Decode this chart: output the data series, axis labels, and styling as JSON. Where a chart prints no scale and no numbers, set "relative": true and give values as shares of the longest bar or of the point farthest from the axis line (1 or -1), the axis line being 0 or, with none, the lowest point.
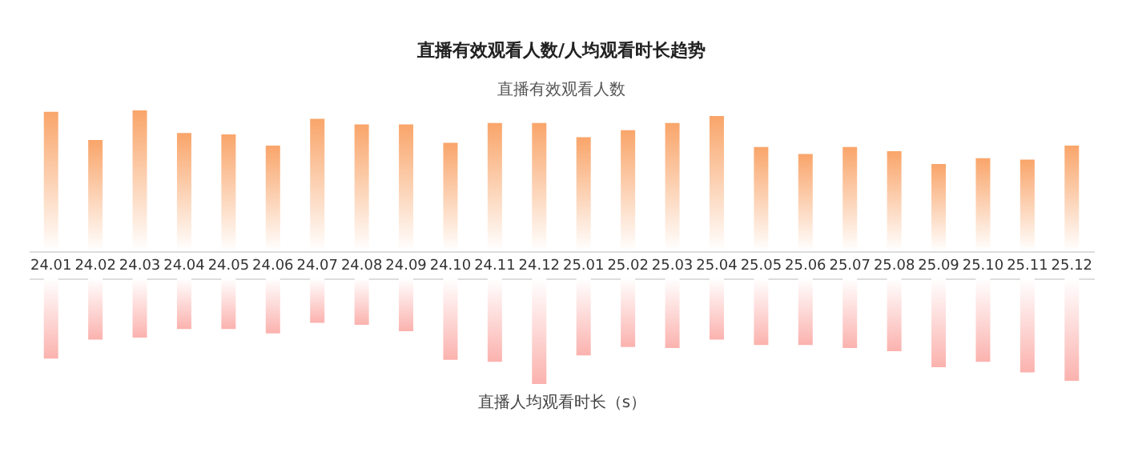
{
  "chart_data": [
    {
      "type": "bar",
      "title": "直播有效观看人数/人均观看时长趋势",
      "subtitle": "直播有效观看人数",
      "relative": true,
      "color": "#f9a56a",
      "categories": [
        "24.01",
        "24.02",
        "24.03",
        "24.04",
        "24.05",
        "24.06",
        "24.07",
        "24.08",
        "24.09",
        "24.10",
        "24.11",
        "24.12",
        "25.01",
        "25.02",
        "25.03",
        "25.04",
        "25.05",
        "25.06",
        "25.07",
        "25.08",
        "25.09",
        "25.10",
        "25.11",
        "25.12"
      ],
      "values": [
        0.99,
        0.79,
        1,
        0.84,
        0.83,
        0.75,
        0.94,
        0.9,
        0.9,
        0.77,
        0.91,
        0.91,
        0.81,
        0.86,
        0.91,
        0.96,
        0.74,
        0.69,
        0.74,
        0.71,
        0.62,
        0.66,
        0.65,
        0.75
      ]
    },
    {
      "type": "bar",
      "xlabel": "直播人均观看时长（s）",
      "relative": true,
      "color": "#fbb2ae",
      "tick_labels": false,
      "categories": [
        "24.01",
        "24.02",
        "24.03",
        "24.04",
        "24.05",
        "24.06",
        "24.07",
        "24.08",
        "24.09",
        "24.10",
        "24.11",
        "24.12",
        "25.01",
        "25.02",
        "25.03",
        "25.04",
        "25.05",
        "25.06",
        "25.07",
        "25.08",
        "25.09",
        "25.10",
        "25.11",
        "25.12"
      ],
      "values": [
        -0.76,
        -0.58,
        -0.56,
        -0.48,
        -0.48,
        -0.52,
        -0.42,
        -0.44,
        -0.5,
        -0.77,
        -0.79,
        -1,
        -0.73,
        -0.65,
        -0.66,
        -0.58,
        -0.63,
        -0.63,
        -0.66,
        -0.69,
        -0.84,
        -0.79,
        -0.89,
        -0.97
      ]
    }
  ]
}
